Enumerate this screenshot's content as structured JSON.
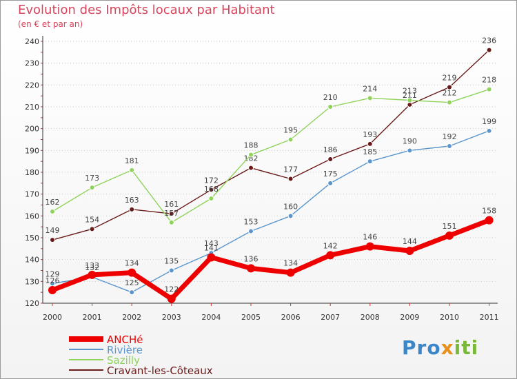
{
  "title": "Evolution des Impôts locaux par Habitant",
  "subtitle": "(en € et par an)",
  "logo": {
    "part1": "Pro",
    "part2": "x",
    "part3": "iti"
  },
  "chart_data": {
    "type": "line",
    "title": "Evolution des Impôts locaux par Habitant",
    "ylabel": "(en € et par an)",
    "x": [
      "2000",
      "2001",
      "2002",
      "2003",
      "2004",
      "2005",
      "2006",
      "2007",
      "2008",
      "2009",
      "2010",
      "2011"
    ],
    "ylim": [
      120,
      240
    ],
    "yticks": [
      120,
      130,
      140,
      150,
      160,
      170,
      180,
      190,
      200,
      210,
      220,
      230,
      240
    ],
    "grid": "horizontal dotted",
    "legend": "bottom-left",
    "series": [
      {
        "name": "ANCHé",
        "color": "#ee0000",
        "values": [
          126,
          133,
          134,
          122,
          141,
          136,
          134,
          142,
          146,
          144,
          151,
          158
        ]
      },
      {
        "name": "Rivière",
        "color": "#5a96cc",
        "values": [
          129,
          132,
          125,
          135,
          143,
          153,
          160,
          175,
          185,
          190,
          192,
          199
        ]
      },
      {
        "name": "Sazilly",
        "color": "#8fd35a",
        "values": [
          162,
          173,
          181,
          157,
          168,
          188,
          195,
          210,
          214,
          213,
          212,
          218
        ]
      },
      {
        "name": "Cravant-les-Côteaux",
        "color": "#6b1a1a",
        "values": [
          149,
          154,
          163,
          161,
          172,
          182,
          177,
          186,
          193,
          211,
          219,
          236
        ]
      }
    ]
  }
}
